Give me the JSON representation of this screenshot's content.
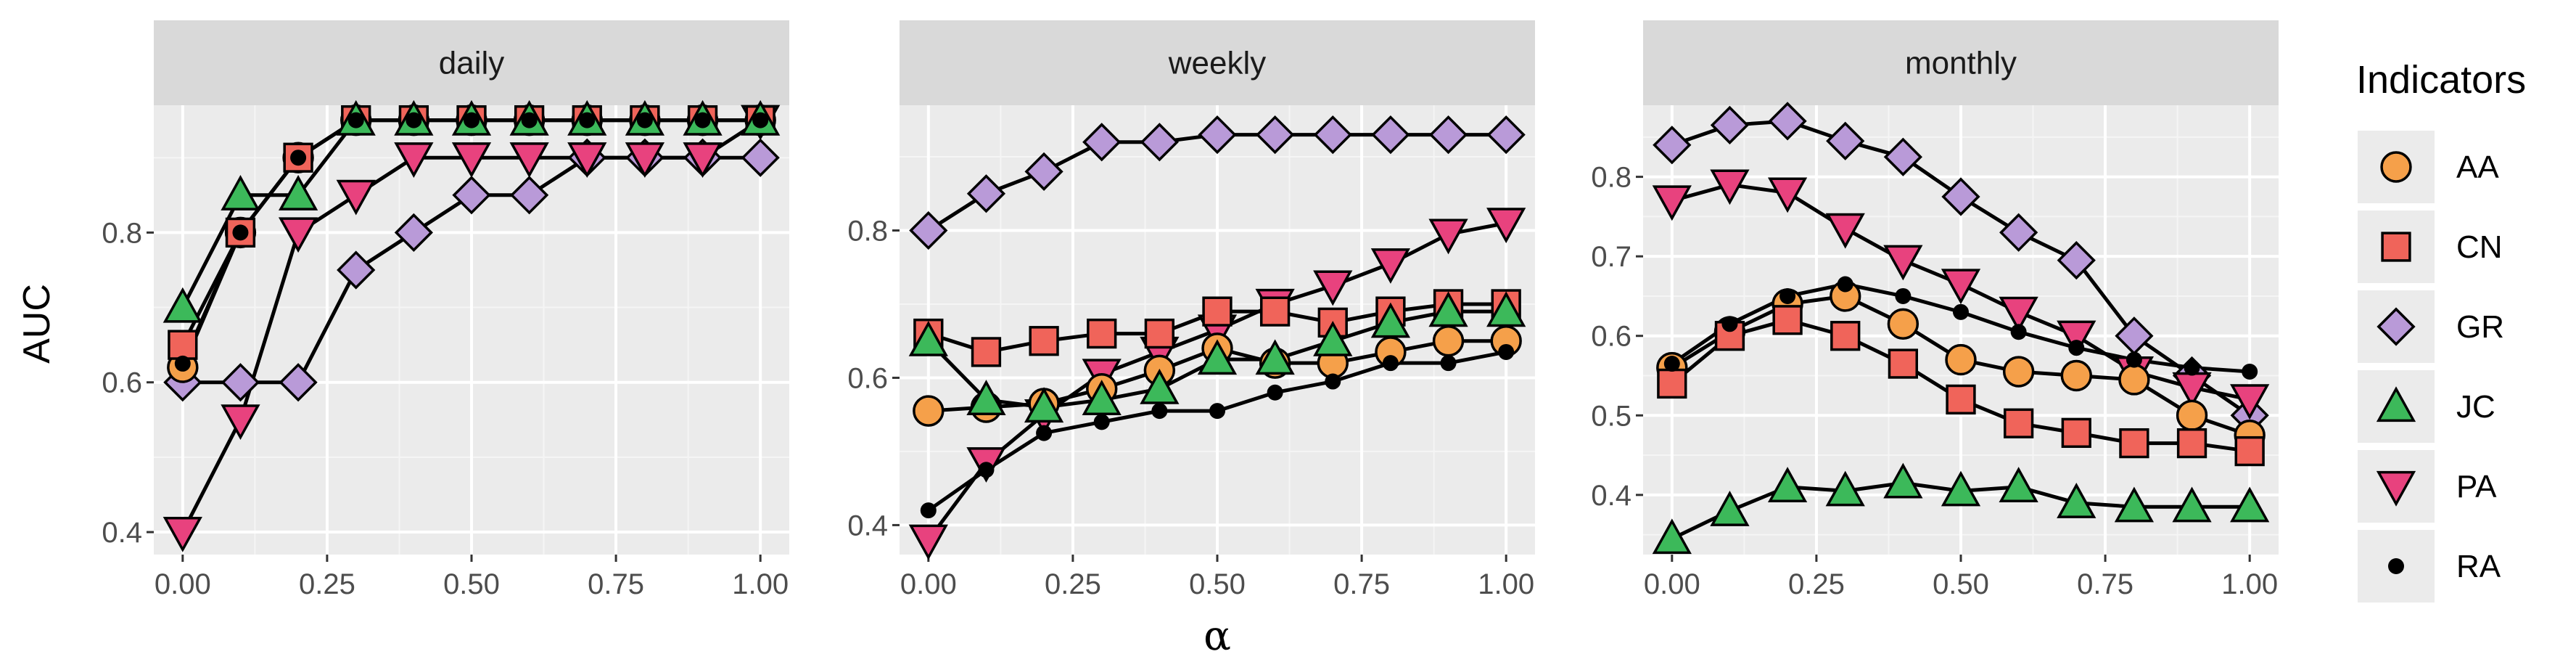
{
  "chart_data": {
    "type": "line",
    "ylabel": "AUC",
    "xlabel": "α",
    "x": [
      0,
      0.1,
      0.2,
      0.3,
      0.4,
      0.5,
      0.6,
      0.7,
      0.8,
      0.9,
      1.0
    ],
    "x_ticks": [
      "0.00",
      "0.25",
      "0.50",
      "0.75",
      "1.00"
    ],
    "x_tick_values": [
      0,
      0.25,
      0.5,
      0.75,
      1.0
    ],
    "xlim": [
      -0.05,
      1.05
    ],
    "grid": true,
    "legend": {
      "title": "Indicators",
      "position": "right",
      "entries": [
        "AA",
        "CN",
        "GR",
        "JC",
        "PA",
        "RA"
      ]
    },
    "series_styles": {
      "AA": {
        "shape": "circle",
        "fill": "#F5A04A"
      },
      "CN": {
        "shape": "square",
        "fill": "#F0645A"
      },
      "GR": {
        "shape": "diamond",
        "fill": "#B99AD8"
      },
      "JC": {
        "shape": "triangle-up",
        "fill": "#3CB95A"
      },
      "PA": {
        "shape": "triangle-down",
        "fill": "#E8427E"
      },
      "RA": {
        "shape": "dot",
        "fill": "#000000"
      }
    },
    "panels": [
      {
        "title": "daily",
        "ylim": [
          0.37,
          0.97
        ],
        "y_ticks": [
          "0.4",
          "0.6",
          "0.8"
        ],
        "y_tick_values": [
          0.4,
          0.6,
          0.8
        ],
        "series": [
          {
            "name": "AA",
            "values": [
              0.62,
              0.8,
              0.9,
              0.95,
              0.95,
              0.95,
              0.95,
              0.95,
              0.95,
              0.95,
              0.95
            ]
          },
          {
            "name": "CN",
            "values": [
              0.65,
              0.8,
              0.9,
              0.95,
              0.95,
              0.95,
              0.95,
              0.95,
              0.95,
              0.95,
              0.95
            ]
          },
          {
            "name": "GR",
            "values": [
              0.6,
              0.6,
              0.6,
              0.75,
              0.8,
              0.85,
              0.85,
              0.9,
              0.9,
              0.9,
              0.9
            ]
          },
          {
            "name": "JC",
            "values": [
              0.7,
              0.85,
              0.85,
              0.95,
              0.95,
              0.95,
              0.95,
              0.95,
              0.95,
              0.95,
              0.95
            ]
          },
          {
            "name": "PA",
            "values": [
              0.4,
              0.55,
              0.8,
              0.85,
              0.9,
              0.9,
              0.9,
              0.9,
              0.9,
              0.9,
              0.95
            ]
          },
          {
            "name": "RA",
            "values": [
              0.625,
              0.8,
              0.9,
              0.95,
              0.95,
              0.95,
              0.95,
              0.95,
              0.95,
              0.95,
              0.95
            ]
          }
        ]
      },
      {
        "title": "weekly",
        "ylim": [
          0.36,
          0.97
        ],
        "y_ticks": [
          "0.4",
          "0.6",
          "0.8"
        ],
        "y_tick_values": [
          0.4,
          0.6,
          0.8
        ],
        "series": [
          {
            "name": "AA",
            "values": [
              0.555,
              0.56,
              0.565,
              0.585,
              0.61,
              0.64,
              0.62,
              0.62,
              0.635,
              0.65,
              0.65
            ]
          },
          {
            "name": "CN",
            "values": [
              0.66,
              0.635,
              0.65,
              0.66,
              0.66,
              0.69,
              0.69,
              0.675,
              0.69,
              0.7,
              0.7
            ]
          },
          {
            "name": "GR",
            "values": [
              0.8,
              0.85,
              0.88,
              0.92,
              0.92,
              0.93,
              0.93,
              0.93,
              0.93,
              0.93,
              0.93
            ]
          },
          {
            "name": "JC",
            "values": [
              0.65,
              0.57,
              0.56,
              0.57,
              0.585,
              0.625,
              0.625,
              0.65,
              0.675,
              0.69,
              0.69
            ]
          },
          {
            "name": "PA",
            "values": [
              0.38,
              0.485,
              0.55,
              0.605,
              0.635,
              0.665,
              0.7,
              0.725,
              0.755,
              0.795,
              0.81
            ]
          },
          {
            "name": "RA",
            "values": [
              0.42,
              0.475,
              0.525,
              0.54,
              0.555,
              0.555,
              0.58,
              0.595,
              0.62,
              0.62,
              0.635
            ]
          }
        ]
      },
      {
        "title": "monthly",
        "ylim": [
          0.325,
          0.89
        ],
        "y_ticks": [
          "0.4",
          "0.5",
          "0.6",
          "0.7",
          "0.8"
        ],
        "y_tick_values": [
          0.4,
          0.5,
          0.6,
          0.7,
          0.8
        ],
        "series": [
          {
            "name": "AA",
            "values": [
              0.56,
              0.605,
              0.64,
              0.65,
              0.615,
              0.57,
              0.555,
              0.55,
              0.545,
              0.5,
              0.475
            ]
          },
          {
            "name": "CN",
            "values": [
              0.54,
              0.6,
              0.62,
              0.6,
              0.565,
              0.52,
              0.49,
              0.478,
              0.465,
              0.465,
              0.455
            ]
          },
          {
            "name": "GR",
            "values": [
              0.84,
              0.865,
              0.87,
              0.845,
              0.825,
              0.775,
              0.73,
              0.695,
              0.6,
              0.55,
              0.5
            ]
          },
          {
            "name": "JC",
            "values": [
              0.345,
              0.38,
              0.41,
              0.405,
              0.415,
              0.405,
              0.41,
              0.39,
              0.385,
              0.385,
              0.385
            ]
          },
          {
            "name": "PA",
            "values": [
              0.77,
              0.79,
              0.78,
              0.735,
              0.695,
              0.665,
              0.63,
              0.6,
              0.555,
              0.535,
              0.52
            ]
          },
          {
            "name": "RA",
            "values": [
              0.565,
              0.615,
              0.65,
              0.665,
              0.65,
              0.63,
              0.605,
              0.585,
              0.57,
              0.56,
              0.555
            ]
          }
        ]
      }
    ]
  }
}
